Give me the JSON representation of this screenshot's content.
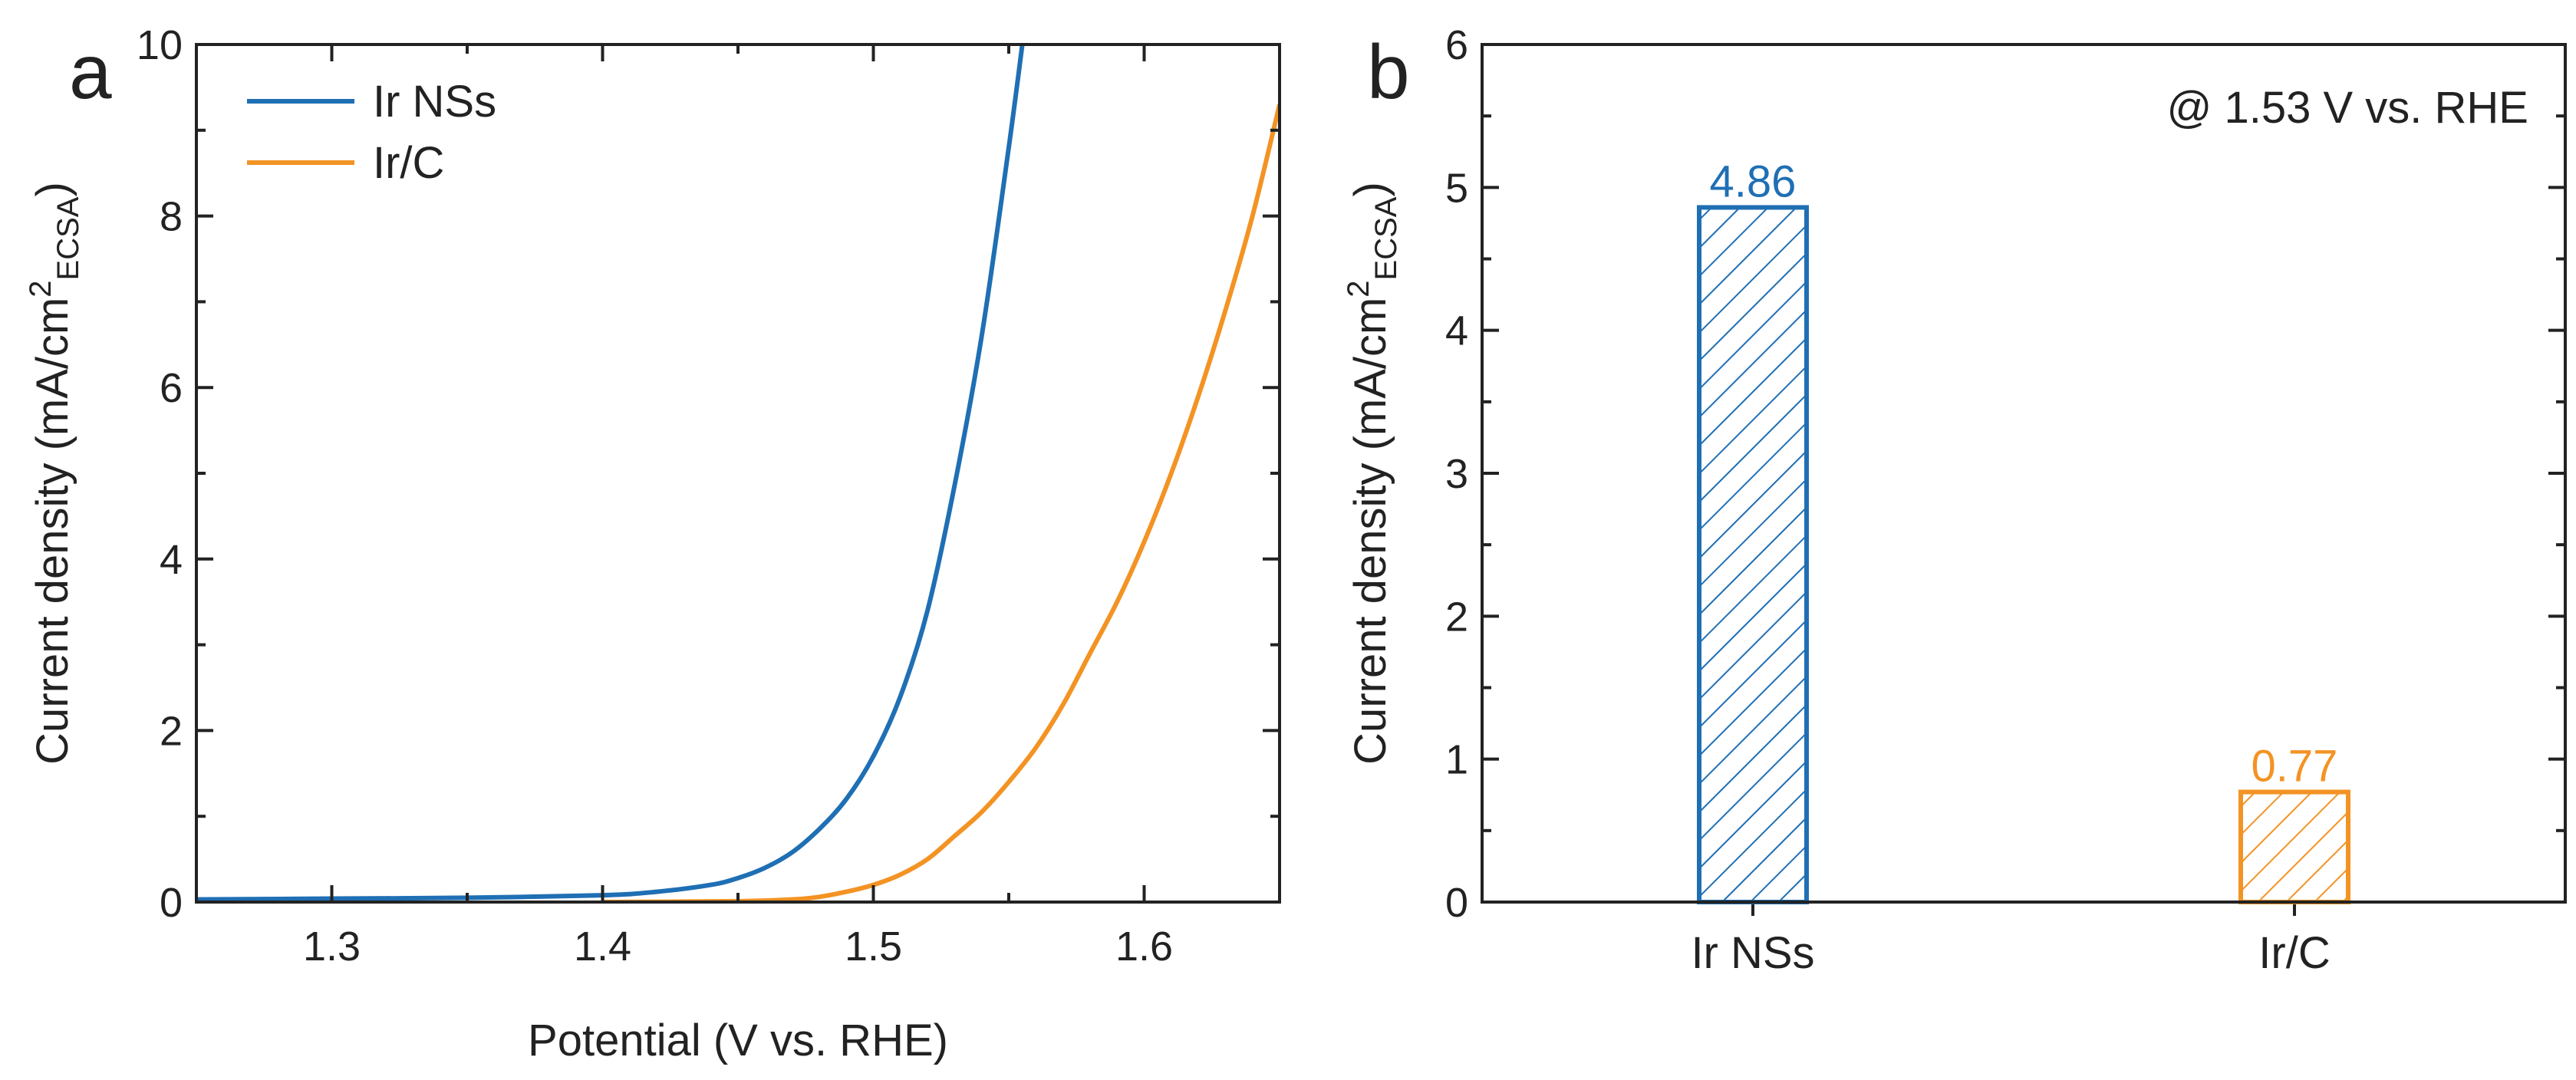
{
  "chart_data": [
    {
      "panel": "a",
      "type": "line",
      "xlabel": "Potential (V vs. RHE)",
      "ylabel_main": "Current density (mA/cm",
      "ylabel_sup": "2",
      "ylabel_sub": "ECSA",
      "ylabel_close": ")",
      "xlim": [
        1.25,
        1.65
      ],
      "ylim": [
        0,
        10
      ],
      "xticks": [
        1.3,
        1.4,
        1.5,
        1.6
      ],
      "xtick_labels": [
        "1.3",
        "1.4",
        "1.5",
        "1.6"
      ],
      "yticks": [
        0,
        2,
        4,
        6,
        8,
        10
      ],
      "ytick_labels": [
        "0",
        "2",
        "4",
        "6",
        "8",
        "10"
      ],
      "series": [
        {
          "name": "Ir NSs",
          "color": "#1f6fb4",
          "points": [
            [
              1.25,
              0.03
            ],
            [
              1.3,
              0.04
            ],
            [
              1.35,
              0.05
            ],
            [
              1.4,
              0.08
            ],
            [
              1.42,
              0.12
            ],
            [
              1.44,
              0.2
            ],
            [
              1.45,
              0.28
            ],
            [
              1.46,
              0.4
            ],
            [
              1.47,
              0.58
            ],
            [
              1.48,
              0.85
            ],
            [
              1.49,
              1.2
            ],
            [
              1.5,
              1.7
            ],
            [
              1.51,
              2.4
            ],
            [
              1.52,
              3.4
            ],
            [
              1.53,
              4.86
            ],
            [
              1.54,
              6.6
            ],
            [
              1.55,
              8.8
            ],
            [
              1.555,
              10.0
            ]
          ]
        },
        {
          "name": "Ir/C",
          "color": "#f39324",
          "points": [
            [
              1.4,
              0.0
            ],
            [
              1.45,
              0.01
            ],
            [
              1.47,
              0.03
            ],
            [
              1.48,
              0.06
            ],
            [
              1.49,
              0.12
            ],
            [
              1.5,
              0.2
            ],
            [
              1.51,
              0.32
            ],
            [
              1.52,
              0.5
            ],
            [
              1.53,
              0.77
            ],
            [
              1.54,
              1.05
            ],
            [
              1.55,
              1.4
            ],
            [
              1.56,
              1.8
            ],
            [
              1.57,
              2.3
            ],
            [
              1.58,
              2.9
            ],
            [
              1.59,
              3.5
            ],
            [
              1.6,
              4.2
            ],
            [
              1.61,
              5.0
            ],
            [
              1.62,
              5.9
            ],
            [
              1.63,
              6.9
            ],
            [
              1.64,
              8.0
            ],
            [
              1.65,
              9.3
            ]
          ]
        }
      ]
    },
    {
      "panel": "b",
      "type": "bar",
      "ylabel_main": "Current density (mA/cm",
      "ylabel_sup": "2",
      "ylabel_sub": "ECSA",
      "ylabel_close": ")",
      "annotation": "@ 1.53 V vs. RHE",
      "categories": [
        "Ir NSs",
        "Ir/C"
      ],
      "values": [
        4.86,
        0.77
      ],
      "value_labels": [
        "4.86",
        "0.77"
      ],
      "colors": [
        "#1f6fb4",
        "#f39324"
      ],
      "ylim": [
        0,
        6
      ],
      "yticks": [
        0,
        1,
        2,
        3,
        4,
        5,
        6
      ],
      "ytick_labels": [
        "0",
        "1",
        "2",
        "3",
        "4",
        "5",
        "6"
      ]
    }
  ]
}
